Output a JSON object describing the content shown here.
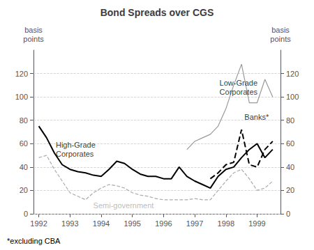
{
  "chart_data": {
    "type": "line",
    "title": "Bond Spreads over CGS",
    "ylabel": "basis\npoints",
    "y2label": "basis\npoints",
    "footnote": "*excluding CBA",
    "xlim": [
      1991.83,
      1999.75
    ],
    "xticks": [
      1992,
      1993,
      1994,
      1995,
      1996,
      1997,
      1998,
      1999
    ],
    "ylim": [
      0,
      140
    ],
    "yticks": [
      0,
      20,
      40,
      60,
      80,
      100,
      120
    ],
    "y2lim": [
      0,
      140
    ],
    "y2ticks": [
      0,
      20,
      40,
      60,
      80,
      100,
      120
    ],
    "grid": true,
    "series": [
      {
        "color": "#aaaaaa",
        "line_style": "dashed",
        "x": [
          1992.0,
          1992.25,
          1992.5,
          1992.75,
          1993.0,
          1993.25,
          1993.5,
          1993.75,
          1994.0,
          1994.25,
          1994.5,
          1994.75,
          1995.0,
          1995.25,
          1995.5,
          1995.75,
          1996.0,
          1996.25,
          1996.5,
          1996.75,
          1997.0,
          1997.25,
          1997.5,
          1997.75,
          1998.0,
          1998.25,
          1998.5,
          1998.75,
          1999.0,
          1999.25,
          1999.5
        ],
        "values": [
          48,
          50,
          38,
          28,
          18,
          15,
          12,
          18,
          22,
          25,
          24,
          22,
          18,
          16,
          15,
          13,
          12,
          12,
          12,
          12,
          13,
          12,
          12,
          20,
          28,
          35,
          38,
          30,
          20,
          22,
          28
        ]
      },
      {
        "color": "#999999",
        "line_style": "solid",
        "x": [
          1996.75,
          1997.0,
          1997.25,
          1997.5,
          1997.75,
          1998.0,
          1998.25,
          1998.5,
          1998.75,
          1999.0,
          1999.25,
          1999.5
        ],
        "values": [
          55,
          62,
          65,
          68,
          75,
          90,
          110,
          128,
          95,
          95,
          115,
          100
        ]
      },
      {
        "color": "#000000",
        "line_style": "solid",
        "x": [
          1992.0,
          1992.25,
          1992.5,
          1992.75,
          1993.0,
          1993.25,
          1993.5,
          1993.75,
          1994.0,
          1994.25,
          1994.5,
          1994.75,
          1995.0,
          1995.25,
          1995.5,
          1995.75,
          1996.0,
          1996.25,
          1996.5,
          1996.75,
          1997.0,
          1997.25,
          1997.5,
          1997.75,
          1998.0,
          1998.25,
          1998.5,
          1998.75,
          1999.0,
          1999.25,
          1999.5
        ],
        "values": [
          75,
          65,
          52,
          42,
          38,
          36,
          35,
          33,
          32,
          38,
          45,
          43,
          38,
          34,
          32,
          32,
          30,
          30,
          40,
          32,
          28,
          25,
          22,
          32,
          38,
          40,
          48,
          55,
          60,
          48,
          55
        ]
      },
      {
        "color": "#000000",
        "line_style": "dashed",
        "x": [
          1997.5,
          1997.75,
          1998.0,
          1998.25,
          1998.5,
          1998.75,
          1999.0,
          1999.25,
          1999.5
        ],
        "values": [
          30,
          35,
          42,
          44,
          72,
          42,
          40,
          55,
          62
        ]
      }
    ],
    "annotations": [
      {
        "text": "High-Grade\nCorporates",
        "x": 1992.5,
        "y": 55,
        "color": "#000000"
      },
      {
        "text": "Banks*",
        "x": 1998.55,
        "y": 83,
        "color": "#000000"
      },
      {
        "text": "Low-Grade\nCorporates",
        "x": 1997.75,
        "y": 108,
        "color": "#000000"
      },
      {
        "text": "Semi-government",
        "x": 1993.7,
        "y": 7,
        "color": "#aaaaaa"
      }
    ]
  }
}
